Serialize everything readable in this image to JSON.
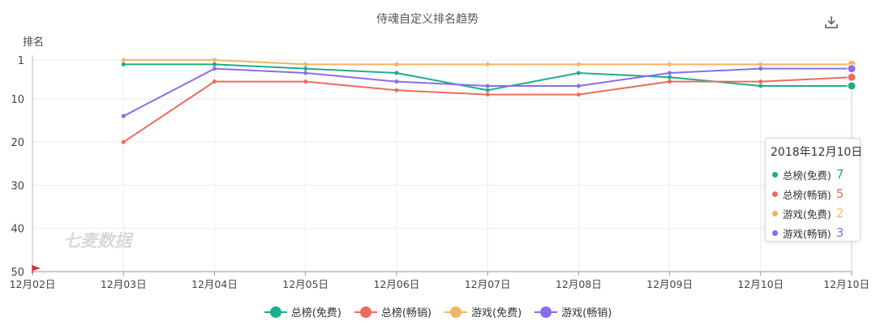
{
  "chart_data": {
    "type": "line",
    "title": "侍魂自定义排名趋势",
    "ylabel": "排名",
    "y_inverted": true,
    "ylim": [
      1,
      50
    ],
    "yticks": [
      1,
      10,
      20,
      30,
      40,
      50
    ],
    "categories": [
      "12月02日",
      "12月03日",
      "12月04日",
      "12月05日",
      "12月06日",
      "12月07日",
      "12月08日",
      "12月09日",
      "12月10日",
      "12月10日"
    ],
    "series": [
      {
        "name": "总榜(免费)",
        "color": "#1aaf8b",
        "values": [
          null,
          2,
          2,
          3,
          4,
          8,
          4,
          5,
          7,
          7
        ]
      },
      {
        "name": "总榜(畅销)",
        "color": "#ee6a5f",
        "values": [
          null,
          20,
          6,
          6,
          8,
          9,
          9,
          6,
          6,
          5
        ]
      },
      {
        "name": "游戏(免费)",
        "color": "#f5b461",
        "values": [
          null,
          1,
          1,
          2,
          2,
          2,
          2,
          2,
          2,
          2
        ]
      },
      {
        "name": "游戏(畅销)",
        "color": "#8b6cf0",
        "values": [
          null,
          14,
          3,
          4,
          6,
          7,
          7,
          4,
          3,
          3
        ]
      }
    ],
    "grid": true,
    "legend_position": "bottom-center",
    "watermark": "七麦数据"
  },
  "tooltip": {
    "title": "2018年12月10日",
    "items": [
      {
        "name": "总榜(免费)",
        "value": "7",
        "color": "#1aaf8b"
      },
      {
        "name": "总榜(畅销)",
        "value": "5",
        "color": "#ee6a5f"
      },
      {
        "name": "游戏(免费)",
        "value": "2",
        "color": "#f5b461"
      },
      {
        "name": "游戏(畅销)",
        "value": "3",
        "color": "#8b6cf0"
      }
    ]
  },
  "toolbar": {
    "download_icon": "download-icon"
  }
}
